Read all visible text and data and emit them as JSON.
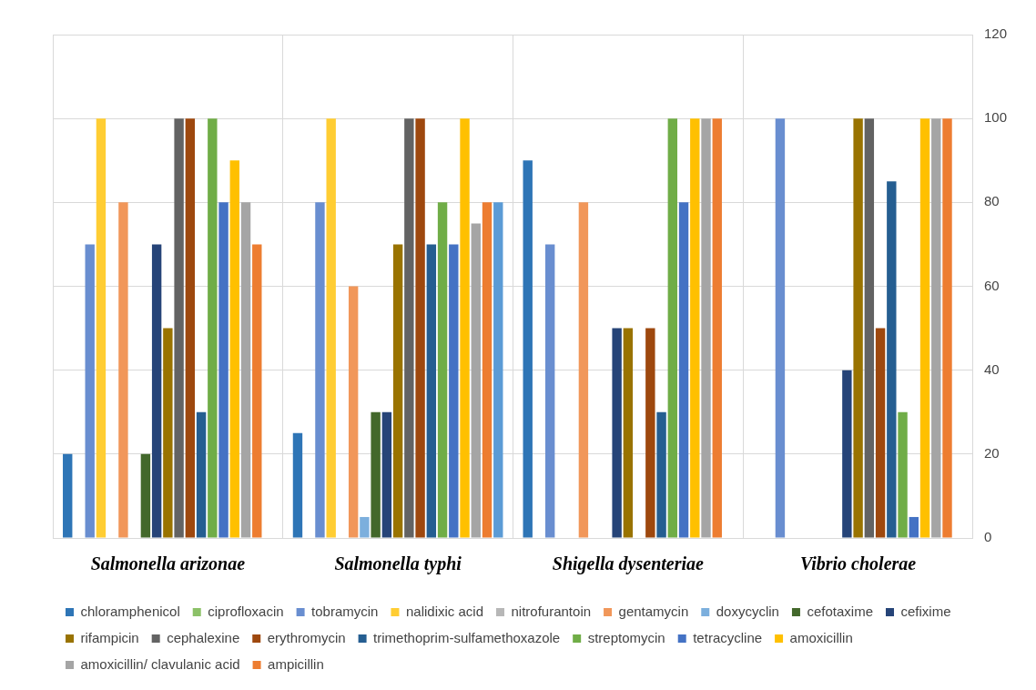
{
  "chart_data": {
    "type": "bar",
    "categories": [
      "Salmonella arizonae",
      "Salmonella typhi",
      "Shigella dysenteriae",
      "Vibrio cholerae"
    ],
    "ylim": [
      0,
      120
    ],
    "yticks": [
      0,
      20,
      40,
      60,
      80,
      100,
      120
    ],
    "grid": true,
    "legend": "bottom",
    "series": [
      {
        "name": "chloramphenicol",
        "color": "#2e75b6",
        "values": [
          20,
          25,
          90,
          0
        ]
      },
      {
        "name": "ciprofloxacin",
        "color": "#8cc168",
        "values": [
          0,
          0,
          0,
          0
        ]
      },
      {
        "name": "tobramycin",
        "color": "#698ed0",
        "values": [
          70,
          80,
          70,
          100
        ]
      },
      {
        "name": "nalidixic acid",
        "color": "#ffcd33",
        "values": [
          100,
          100,
          0,
          0
        ]
      },
      {
        "name": "nitrofurantoin",
        "color": "#b7b7b7",
        "values": [
          0,
          0,
          0,
          0
        ]
      },
      {
        "name": "gentamycin",
        "color": "#f1975a",
        "values": [
          80,
          60,
          80,
          0
        ]
      },
      {
        "name": "doxycyclin",
        "color": "#7cafdd",
        "values": [
          0,
          5,
          0,
          0
        ]
      },
      {
        "name": "cefotaxime",
        "color": "#43682b",
        "values": [
          20,
          30,
          0,
          0
        ]
      },
      {
        "name": "cefixime",
        "color": "#264478",
        "values": [
          70,
          30,
          50,
          40
        ]
      },
      {
        "name": "rifampicin",
        "color": "#997300",
        "values": [
          50,
          70,
          50,
          100
        ]
      },
      {
        "name": "cephalexine",
        "color": "#636363",
        "values": [
          100,
          100,
          0,
          100
        ]
      },
      {
        "name": "erythromycin",
        "color": "#9e480e",
        "values": [
          100,
          100,
          50,
          50
        ]
      },
      {
        "name": "trimethoprim-sulfamethoxazole",
        "color": "#255e91",
        "values": [
          30,
          70,
          30,
          85
        ]
      },
      {
        "name": "streptomycin",
        "color": "#70ad47",
        "values": [
          100,
          80,
          100,
          30
        ]
      },
      {
        "name": "tetracycline",
        "color": "#4472c4",
        "values": [
          80,
          70,
          80,
          5
        ]
      },
      {
        "name": "amoxicillin",
        "color": "#ffc000",
        "values": [
          90,
          100,
          100,
          100
        ]
      },
      {
        "name": "amoxicillin/ clavulanic acid",
        "color": "#a5a5a5",
        "values": [
          80,
          75,
          100,
          100
        ]
      },
      {
        "name": "ampicillin",
        "color": "#ed7d31",
        "values": [
          70,
          80,
          100,
          100
        ]
      },
      {
        "color": "#5b9bd5",
        "values": [
          0,
          80,
          0,
          0
        ]
      }
    ]
  }
}
